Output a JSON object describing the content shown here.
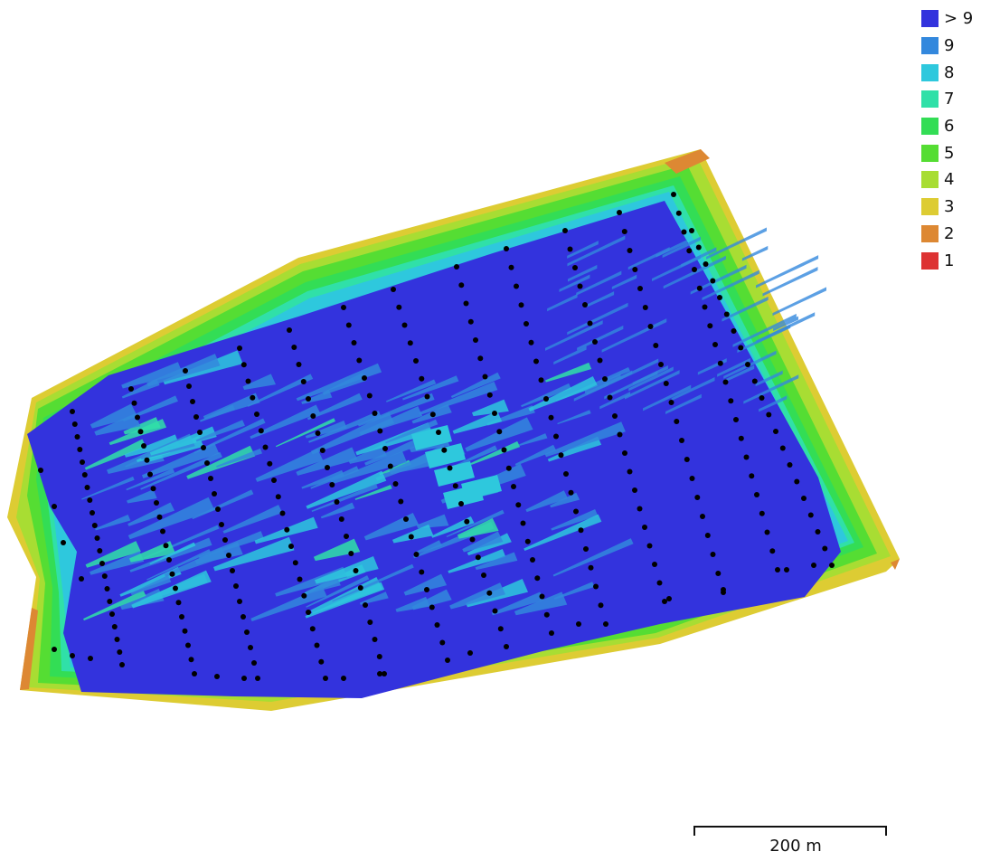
{
  "legend": {
    "items": [
      {
        "label": "> 9",
        "color": "#3333dd"
      },
      {
        "label": "9",
        "color": "#3388dd"
      },
      {
        "label": "8",
        "color": "#2ec8dd"
      },
      {
        "label": "7",
        "color": "#30e0a8"
      },
      {
        "label": "6",
        "color": "#33dd55"
      },
      {
        "label": "5",
        "color": "#55dd33"
      },
      {
        "label": "4",
        "color": "#a8dd33"
      },
      {
        "label": "3",
        "color": "#ddcc33"
      },
      {
        "label": "2",
        "color": "#dd8833"
      },
      {
        "label": "1",
        "color": "#dd3333"
      }
    ]
  },
  "scale_bar": {
    "label": "200 m"
  },
  "map": {
    "colors": {
      "outer": "#55dd33",
      "edge": "#a8dd33",
      "edge_far": "#ddcc33",
      "edge_extreme": "#dd8833",
      "mid": "#30e0a8",
      "inner": "#2ec8dd",
      "core": "#3333dd",
      "streak": "#3388dd",
      "camera": "#000000"
    },
    "camera_count": 300
  }
}
